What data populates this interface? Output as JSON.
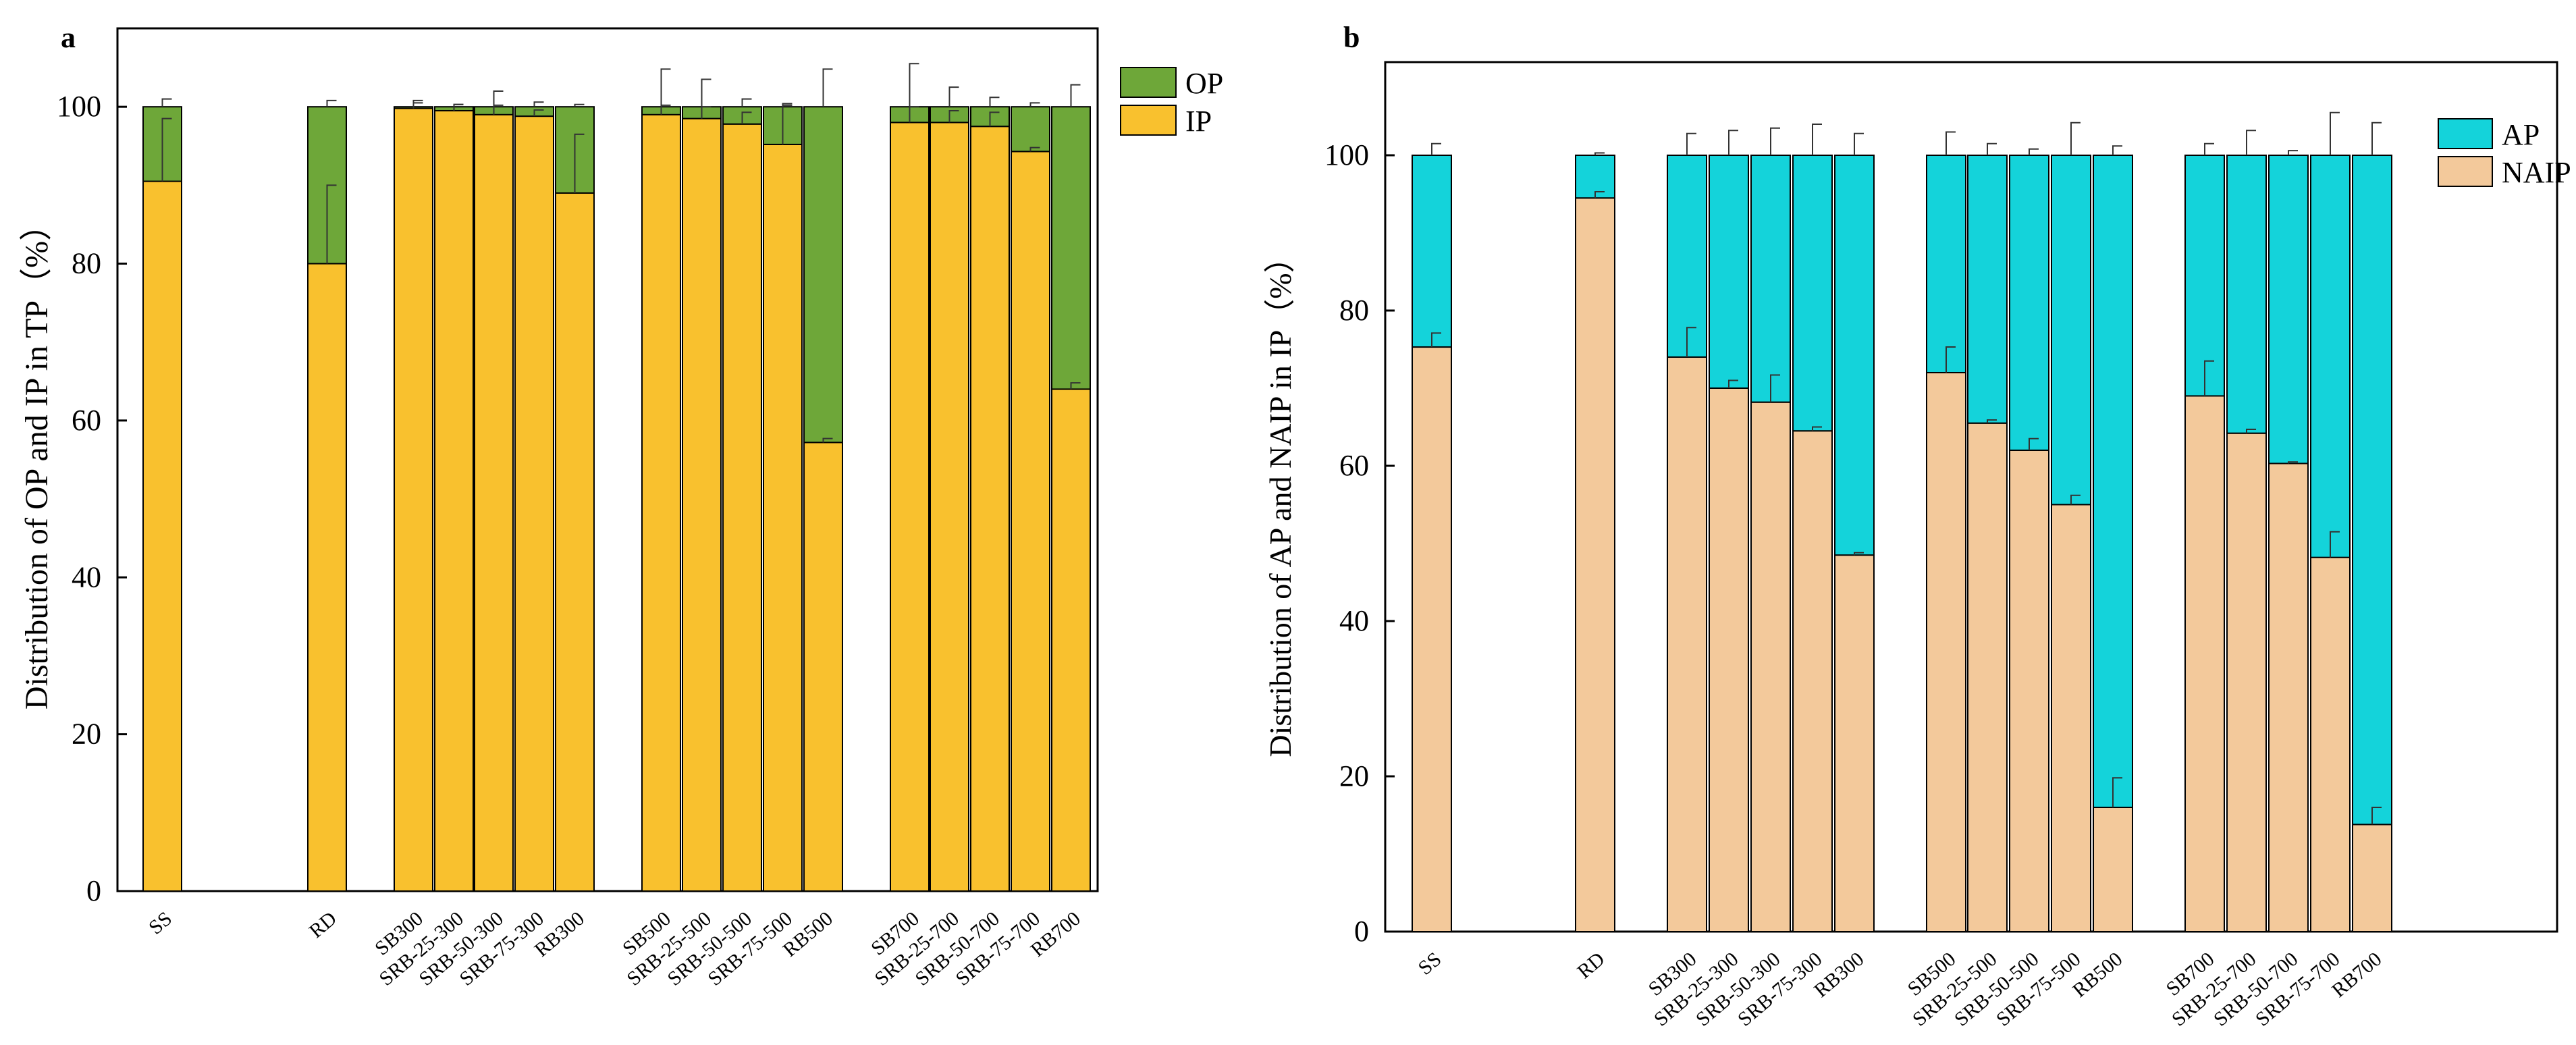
{
  "chart_data": [
    {
      "panel_label": "a",
      "type": "bar",
      "stacked": true,
      "title": "",
      "xlabel": "",
      "ylabel": "Distribution of OP and IP in TP（%）",
      "ylim": [
        0,
        110
      ],
      "yticks": [
        "0",
        "20",
        "40",
        "60",
        "80",
        "100"
      ],
      "grid": false,
      "legend_position": "top-right",
      "categories": [
        "SS",
        "RD",
        "SB300",
        "SRB-25-300",
        "SRB-50-300",
        "SRB-75-300",
        "RB300",
        "SB500",
        "SRB-25-500",
        "SRB-50-500",
        "SRB-75-500",
        "RB500",
        "SB700",
        "SRB-25-700",
        "SRB-50-700",
        "SRB-75-700",
        "RB700"
      ],
      "series": [
        {
          "name": "IP",
          "color": "#F9C12E",
          "values": [
            90.5,
            80.0,
            99.8,
            99.5,
            99.0,
            98.8,
            89.0,
            99.0,
            98.5,
            97.8,
            95.2,
            57.2,
            98.0,
            98.0,
            97.5,
            94.3,
            64.0
          ],
          "errors": [
            8.0,
            10.0,
            1.0,
            0.8,
            1.2,
            0.8,
            7.5,
            1.2,
            1.5,
            1.5,
            5.0,
            0.5,
            2.0,
            1.5,
            1.8,
            0.5,
            0.8
          ]
        },
        {
          "name": "OP",
          "color": "#6EA739",
          "values": [
            9.5,
            20.0,
            0.2,
            0.5,
            1.0,
            1.2,
            11.0,
            1.0,
            1.5,
            2.2,
            4.8,
            42.8,
            2.0,
            2.0,
            2.5,
            5.7,
            36.0
          ],
          "errors": [
            1.0,
            0.8,
            0.5,
            0.3,
            2.0,
            0.6,
            0.3,
            4.8,
            3.5,
            1.0,
            0.4,
            4.8,
            5.5,
            2.5,
            1.2,
            0.5,
            2.8
          ]
        }
      ]
    },
    {
      "panel_label": "b",
      "type": "bar",
      "stacked": true,
      "title": "",
      "xlabel": "",
      "ylabel": "Distribution of AP and NAIP in IP（%）",
      "ylim": [
        0,
        110
      ],
      "yticks": [
        "0",
        "20",
        "40",
        "60",
        "80",
        "100"
      ],
      "grid": false,
      "legend_position": "top-right",
      "categories": [
        "SS",
        "RD",
        "SB300",
        "SRB-25-300",
        "SRB-50-300",
        "SRB-75-300",
        "RB300",
        "SB500",
        "SRB-25-500",
        "SRB-50-500",
        "SRB-75-500",
        "RB500",
        "SB700",
        "SRB-25-700",
        "SRB-50-700",
        "SRB-75-700",
        "RB700"
      ],
      "series": [
        {
          "name": "NAIP",
          "color": "#F3C99B",
          "values": [
            75.3,
            94.5,
            74.0,
            70.0,
            68.2,
            64.5,
            48.5,
            72.0,
            65.5,
            62.0,
            55.0,
            16.0,
            69.0,
            64.2,
            60.3,
            48.2,
            13.8
          ],
          "errors": [
            1.8,
            0.8,
            3.8,
            1.0,
            3.5,
            0.5,
            0.3,
            3.3,
            0.4,
            1.5,
            1.2,
            3.8,
            4.5,
            0.5,
            0.2,
            3.3,
            2.2
          ]
        },
        {
          "name": "AP",
          "color": "#14D3DA",
          "values": [
            24.7,
            5.5,
            26.0,
            30.0,
            31.8,
            35.5,
            51.5,
            28.0,
            34.5,
            38.0,
            45.0,
            84.0,
            31.0,
            35.8,
            39.7,
            51.8,
            86.2
          ],
          "errors": [
            1.5,
            0.3,
            2.8,
            3.2,
            3.5,
            4.0,
            2.8,
            3.0,
            1.5,
            0.8,
            4.2,
            1.2,
            1.5,
            3.2,
            0.6,
            5.5,
            4.2
          ]
        }
      ]
    }
  ]
}
